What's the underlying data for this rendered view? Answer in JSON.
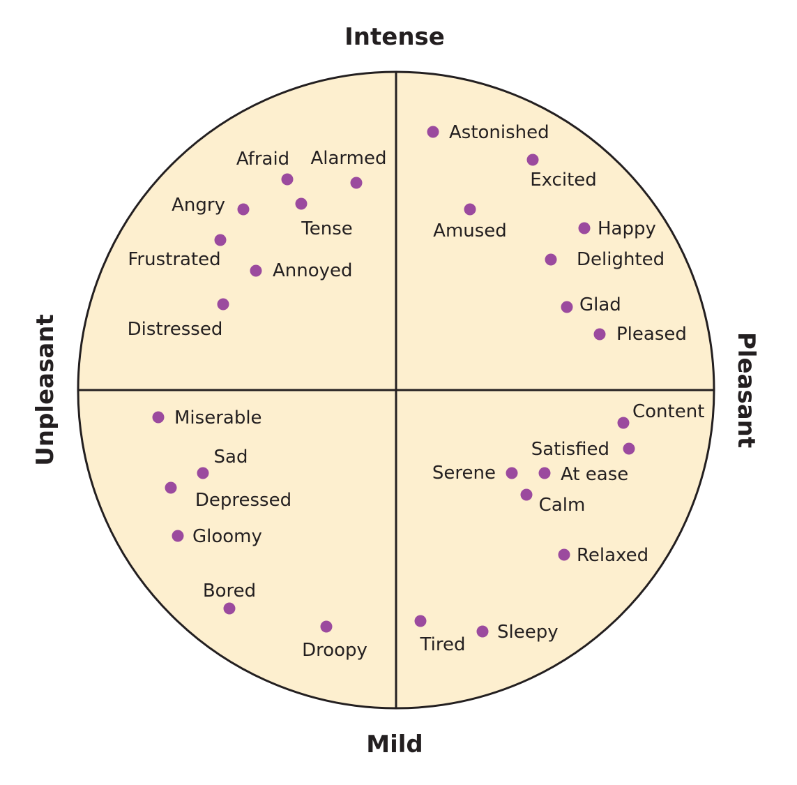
{
  "axes": {
    "top": "Intense",
    "bottom": "Mild",
    "left": "Unpleasant",
    "right": "Pleasant"
  },
  "colors": {
    "circle_fill": "#fdefcf",
    "outline": "#231f20",
    "dot": "#9b4a9e",
    "text": "#231f20"
  },
  "emotions": [
    {
      "name": "Afraid",
      "quadrant": "intense-unpleasant"
    },
    {
      "name": "Alarmed",
      "quadrant": "intense-unpleasant"
    },
    {
      "name": "Angry",
      "quadrant": "intense-unpleasant"
    },
    {
      "name": "Tense",
      "quadrant": "intense-unpleasant"
    },
    {
      "name": "Frustrated",
      "quadrant": "intense-unpleasant"
    },
    {
      "name": "Annoyed",
      "quadrant": "intense-unpleasant"
    },
    {
      "name": "Distressed",
      "quadrant": "intense-unpleasant"
    },
    {
      "name": "Astonished",
      "quadrant": "intense-pleasant"
    },
    {
      "name": "Excited",
      "quadrant": "intense-pleasant"
    },
    {
      "name": "Amused",
      "quadrant": "intense-pleasant"
    },
    {
      "name": "Happy",
      "quadrant": "intense-pleasant"
    },
    {
      "name": "Delighted",
      "quadrant": "intense-pleasant"
    },
    {
      "name": "Glad",
      "quadrant": "intense-pleasant"
    },
    {
      "name": "Pleased",
      "quadrant": "intense-pleasant"
    },
    {
      "name": "Miserable",
      "quadrant": "mild-unpleasant"
    },
    {
      "name": "Sad",
      "quadrant": "mild-unpleasant"
    },
    {
      "name": "Depressed",
      "quadrant": "mild-unpleasant"
    },
    {
      "name": "Gloomy",
      "quadrant": "mild-unpleasant"
    },
    {
      "name": "Bored",
      "quadrant": "mild-unpleasant"
    },
    {
      "name": "Droopy",
      "quadrant": "mild-unpleasant"
    },
    {
      "name": "Content",
      "quadrant": "mild-pleasant"
    },
    {
      "name": "Satisfied",
      "quadrant": "mild-pleasant"
    },
    {
      "name": "Serene",
      "quadrant": "mild-pleasant"
    },
    {
      "name": "At ease",
      "quadrant": "mild-pleasant"
    },
    {
      "name": "Calm",
      "quadrant": "mild-pleasant"
    },
    {
      "name": "Relaxed",
      "quadrant": "mild-pleasant"
    },
    {
      "name": "Tired",
      "quadrant": "mild-pleasant"
    },
    {
      "name": "Sleepy",
      "quadrant": "mild-pleasant"
    }
  ]
}
